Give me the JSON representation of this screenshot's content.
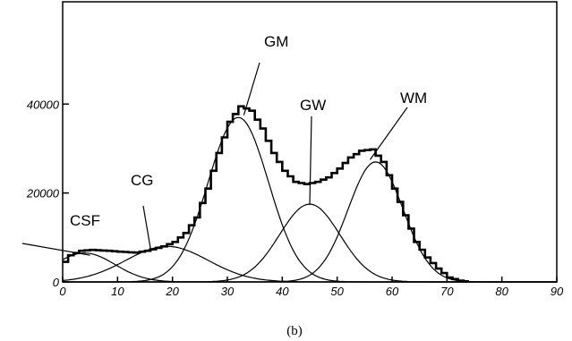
{
  "chart_data": {
    "type": "line",
    "title": "",
    "xlabel": "",
    "ylabel": "",
    "xlim": [
      0,
      90
    ],
    "ylim": [
      0,
      50000
    ],
    "x_ticks": [
      0,
      10,
      20,
      30,
      40,
      50,
      60,
      70,
      80,
      90
    ],
    "y_ticks": [
      0,
      20000,
      40000
    ],
    "grid": false,
    "legend": "none",
    "components": [
      {
        "name": "CSF",
        "mean": 4,
        "sigma": 5.5,
        "amplitude": 6500
      },
      {
        "name": "CG",
        "mean": 19,
        "sigma": 7.5,
        "amplitude": 8000
      },
      {
        "name": "GM",
        "mean": 32,
        "sigma": 5.5,
        "amplitude": 37000
      },
      {
        "name": "GW",
        "mean": 45,
        "sigma": 5.5,
        "amplitude": 17500
      },
      {
        "name": "WM",
        "mean": 57,
        "sigma": 5.0,
        "amplitude": 27000
      }
    ],
    "total_series": {
      "x": [
        0,
        1,
        3,
        5,
        8,
        10,
        13,
        15,
        18,
        20,
        22,
        24,
        26,
        28,
        30,
        32,
        34,
        36,
        38,
        40,
        42,
        44,
        46,
        48,
        50,
        52,
        54,
        56,
        58,
        60,
        62,
        64,
        66,
        68,
        70,
        72,
        74
      ],
      "y": [
        4500,
        6000,
        7000,
        7200,
        7000,
        6800,
        6600,
        7000,
        8000,
        9000,
        11000,
        14500,
        21000,
        29000,
        36000,
        39500,
        38500,
        34500,
        29000,
        25000,
        22500,
        22000,
        22500,
        23500,
        25500,
        28000,
        29500,
        29800,
        27000,
        21000,
        15000,
        9000,
        5500,
        3000,
        1000,
        300,
        0
      ]
    },
    "annotations": [
      {
        "label": "CSF",
        "x": 4,
        "y": 6500
      },
      {
        "label": "CG",
        "x": 19,
        "y": 8000
      },
      {
        "label": "GM",
        "x": 34,
        "y": 38000
      },
      {
        "label": "GW",
        "x": 45,
        "y": 17500
      },
      {
        "label": "WM",
        "x": 57,
        "y": 27000
      }
    ]
  },
  "caption": "(b)"
}
